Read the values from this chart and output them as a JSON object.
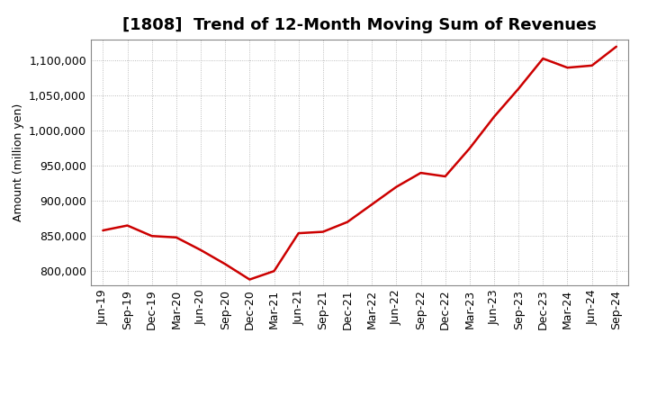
{
  "title": "[1808]  Trend of 12-Month Moving Sum of Revenues",
  "ylabel": "Amount (million yen)",
  "line_color": "#CC0000",
  "background_color": "#FFFFFF",
  "grid_color": "#AAAAAA",
  "ylim": [
    780000,
    1130000
  ],
  "yticks": [
    800000,
    850000,
    900000,
    950000,
    1000000,
    1050000,
    1100000
  ],
  "labels": [
    "Jun-19",
    "Sep-19",
    "Dec-19",
    "Mar-20",
    "Jun-20",
    "Sep-20",
    "Dec-20",
    "Mar-21",
    "Jun-21",
    "Sep-21",
    "Dec-21",
    "Mar-22",
    "Jun-22",
    "Sep-22",
    "Dec-22",
    "Mar-23",
    "Jun-23",
    "Sep-23",
    "Dec-23",
    "Mar-24",
    "Jun-24",
    "Sep-24"
  ],
  "values": [
    858000,
    865000,
    850000,
    848000,
    830000,
    810000,
    788000,
    800000,
    854000,
    856000,
    870000,
    895000,
    920000,
    940000,
    935000,
    975000,
    1020000,
    1060000,
    1103000,
    1090000,
    1093000,
    1120000
  ],
  "title_fontsize": 13,
  "ylabel_fontsize": 9,
  "tick_fontsize": 9
}
